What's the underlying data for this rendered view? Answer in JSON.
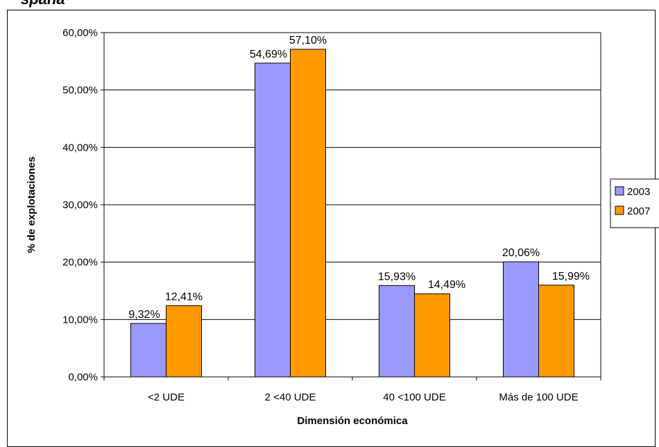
{
  "header": {
    "title_fragment": "spaña"
  },
  "colors": {
    "series_2003": "#9999ff",
    "series_2007": "#ff9900",
    "gridline": "#000000"
  },
  "chart_data": {
    "type": "bar",
    "categories": [
      "<2 UDE",
      "2 <40 UDE",
      "40 <100 UDE",
      "Más de 100 UDE"
    ],
    "series": [
      {
        "name": "2003",
        "values": [
          9.32,
          54.69,
          15.93,
          20.06
        ],
        "labels": [
          "9,32%",
          "54,69%",
          "15,93%",
          "20,06%"
        ]
      },
      {
        "name": "2007",
        "values": [
          12.41,
          57.1,
          14.49,
          15.99
        ],
        "labels": [
          "12,41%",
          "57,10%",
          "14,49%",
          "15,99%"
        ]
      }
    ],
    "yticks": [
      "0,00%",
      "10,00%",
      "20,00%",
      "30,00%",
      "40,00%",
      "50,00%",
      "60,00%"
    ],
    "ylim": [
      0,
      60
    ],
    "xlabel": "Dimensión económica",
    "ylabel": "% de explotaciones",
    "grid": true,
    "legend": "right"
  }
}
